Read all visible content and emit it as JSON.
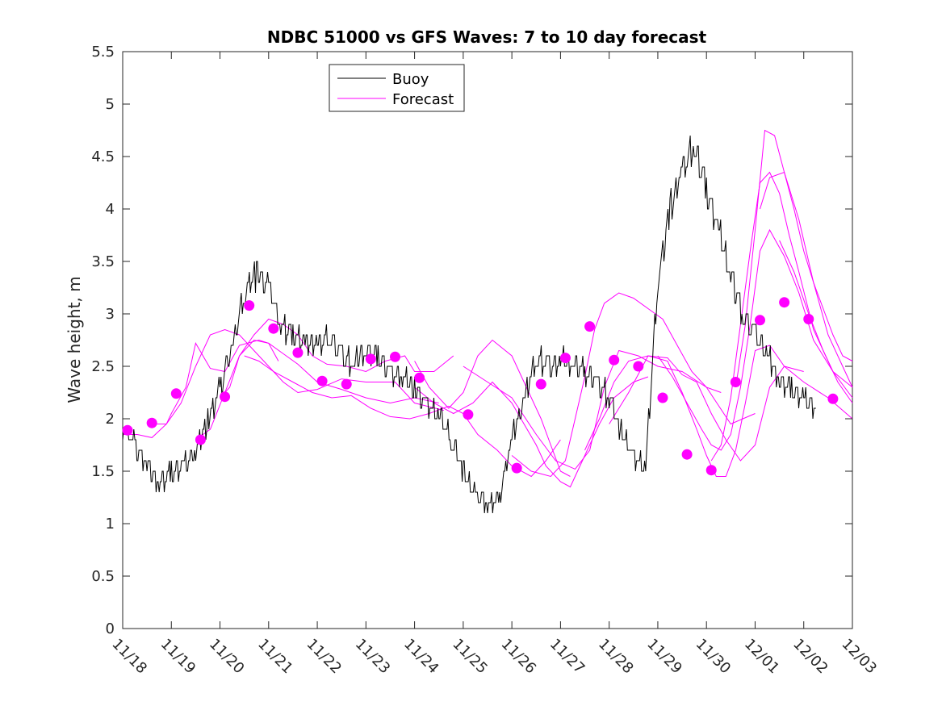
{
  "chart_data": {
    "type": "line",
    "title": "NDBC 51000 vs GFS Waves: 7 to 10 day forecast",
    "xlabel": "",
    "ylabel": "Wave height, m",
    "xlim": [
      0,
      15
    ],
    "ylim": [
      0,
      5.5
    ],
    "grid": false,
    "legend_position": "top-left",
    "x_tick_labels": [
      "11/18",
      "11/19",
      "11/20",
      "11/21",
      "11/22",
      "11/23",
      "11/24",
      "11/25",
      "11/26",
      "11/27",
      "11/28",
      "11/29",
      "11/30",
      "12/01",
      "12/02",
      "12/03"
    ],
    "y_ticks": [
      0,
      0.5,
      1,
      1.5,
      2,
      2.5,
      3,
      3.5,
      4,
      4.5,
      5,
      5.5
    ],
    "y_tick_labels": [
      "0",
      "0.5",
      "1",
      "1.5",
      "2",
      "2.5",
      "3",
      "3.5",
      "4",
      "4.5",
      "5",
      "5.5"
    ],
    "series": [
      {
        "name": "Buoy",
        "color": "#000000",
        "x": [
          0.0,
          0.25,
          0.5,
          0.75,
          1.0,
          1.25,
          1.5,
          1.75,
          2.0,
          2.25,
          2.5,
          2.75,
          3.0,
          3.25,
          3.5,
          3.75,
          4.0,
          4.25,
          4.5,
          4.75,
          5.0,
          5.25,
          5.5,
          5.75,
          6.0,
          6.25,
          6.5,
          6.75,
          7.0,
          7.25,
          7.5,
          7.75,
          8.0,
          8.25,
          8.5,
          8.75,
          9.0,
          9.25,
          9.5,
          9.75,
          10.0,
          10.25,
          10.5,
          10.75,
          11.0,
          11.25,
          11.5,
          11.75,
          12.0,
          12.25,
          12.5,
          12.75,
          13.0,
          13.25,
          13.5,
          13.75,
          14.0,
          14.25
        ],
        "values": [
          1.95,
          1.75,
          1.55,
          1.4,
          1.5,
          1.55,
          1.7,
          2.0,
          2.3,
          2.7,
          3.2,
          3.4,
          3.3,
          2.9,
          2.8,
          2.7,
          2.75,
          2.8,
          2.6,
          2.5,
          2.7,
          2.6,
          2.45,
          2.4,
          2.3,
          2.15,
          2.05,
          1.8,
          1.5,
          1.3,
          1.2,
          1.25,
          1.8,
          2.2,
          2.6,
          2.5,
          2.55,
          2.55,
          2.45,
          2.35,
          2.2,
          1.9,
          1.65,
          1.55,
          3.3,
          4.0,
          4.4,
          4.6,
          4.2,
          3.8,
          3.4,
          3.0,
          2.8,
          2.6,
          2.4,
          2.3,
          2.2,
          2.1
        ]
      }
    ],
    "forecast_series": [
      {
        "name": "Forecast",
        "color": "#ff00ff",
        "x": [
          0.0,
          0.3,
          0.6,
          0.9,
          1.0,
          1.3,
          1.5,
          1.8,
          2.1,
          2.4,
          2.8,
          3.0,
          3.2
        ],
        "values": [
          1.85,
          1.85,
          1.82,
          1.95,
          2.05,
          2.3,
          2.72,
          2.48,
          2.45,
          2.7,
          2.75,
          2.72,
          2.55
        ]
      },
      {
        "name": "Forecast",
        "color": "#ff00ff",
        "x": [
          0.6,
          0.9,
          1.2,
          1.5,
          1.8,
          2.1,
          2.4,
          2.7,
          3.0,
          3.3,
          3.6,
          4.0,
          4.5,
          5.0,
          5.6,
          6.0,
          6.6
        ],
        "values": [
          1.95,
          1.95,
          2.15,
          2.5,
          2.8,
          2.85,
          2.8,
          2.65,
          2.5,
          2.35,
          2.25,
          2.28,
          2.38,
          2.35,
          2.35,
          2.15,
          2.08
        ]
      },
      {
        "name": "Forecast",
        "color": "#ff00ff",
        "x": [
          1.5,
          1.8,
          2.1,
          2.4,
          2.7,
          3.0,
          3.3,
          3.6,
          4.0,
          4.5,
          5.0,
          5.5,
          6.0,
          6.5
        ],
        "values": [
          1.8,
          1.9,
          2.25,
          2.6,
          2.75,
          2.72,
          2.62,
          2.52,
          2.35,
          2.28,
          2.2,
          2.15,
          2.2,
          2.15
        ]
      },
      {
        "name": "Forecast",
        "color": "#ff00ff",
        "x": [
          2.0,
          2.2,
          2.4,
          2.7,
          3.0,
          3.3,
          3.6,
          3.9,
          4.2,
          4.6,
          5.0,
          5.4,
          5.8,
          6.0,
          6.4,
          6.8
        ],
        "values": [
          2.2,
          2.3,
          2.6,
          2.8,
          2.95,
          2.9,
          2.8,
          2.6,
          2.52,
          2.5,
          2.45,
          2.55,
          2.6,
          2.45,
          2.45,
          2.6
        ]
      },
      {
        "name": "Forecast",
        "color": "#ff00ff",
        "x": [
          2.5,
          2.8,
          3.1,
          3.5,
          3.9,
          4.3,
          4.7,
          5.1,
          5.5,
          5.9,
          6.3,
          6.7,
          7.0,
          7.3,
          7.7,
          8.0,
          8.4,
          8.7,
          9.0
        ],
        "values": [
          2.6,
          2.55,
          2.45,
          2.35,
          2.25,
          2.2,
          2.22,
          2.1,
          2.02,
          2.0,
          2.05,
          2.12,
          2.05,
          1.85,
          1.7,
          1.55,
          1.45,
          1.6,
          1.8
        ]
      },
      {
        "name": "Forecast",
        "color": "#ff00ff",
        "x": [
          6.0,
          6.3,
          6.7,
          7.0,
          7.3,
          7.6,
          8.0,
          8.3,
          8.6,
          8.8,
          9.0,
          9.2
        ],
        "values": [
          2.55,
          2.3,
          2.1,
          2.25,
          2.6,
          2.75,
          2.6,
          2.3,
          2.0,
          1.75,
          1.5,
          1.45
        ]
      },
      {
        "name": "Forecast",
        "color": "#ff00ff",
        "x": [
          6.0,
          6.4,
          6.8,
          7.2,
          7.6,
          8.0,
          8.5,
          8.7,
          9.0,
          9.2,
          9.5,
          9.8,
          10.1,
          10.5,
          10.8
        ],
        "values": [
          2.3,
          2.15,
          2.05,
          2.15,
          2.35,
          2.15,
          1.75,
          1.55,
          1.4,
          1.35,
          1.65,
          1.95,
          2.2,
          2.35,
          2.4
        ]
      },
      {
        "name": "Forecast",
        "color": "#ff00ff",
        "x": [
          7.0,
          7.5,
          8.0,
          8.5,
          8.9,
          9.3,
          9.6,
          9.9,
          10.2,
          10.6,
          11.0,
          11.5,
          12.0,
          12.5,
          13.0
        ],
        "values": [
          2.5,
          2.35,
          2.2,
          1.85,
          1.6,
          1.52,
          1.7,
          2.3,
          2.65,
          2.6,
          2.5,
          2.45,
          2.3,
          1.95,
          2.05
        ]
      },
      {
        "name": "Forecast",
        "color": "#ff00ff",
        "x": [
          8.0,
          8.4,
          8.8,
          9.1,
          9.3,
          9.5,
          9.7,
          9.9,
          10.2,
          10.5,
          10.8,
          11.1,
          11.4,
          11.7,
          12.0,
          12.3
        ],
        "values": [
          1.65,
          1.5,
          1.45,
          1.6,
          2.0,
          2.4,
          2.85,
          3.1,
          3.2,
          3.15,
          3.05,
          2.95,
          2.7,
          2.45,
          2.3,
          2.25
        ]
      },
      {
        "name": "Forecast",
        "color": "#ff00ff",
        "x": [
          9.5,
          9.8,
          10.1,
          10.4,
          10.8,
          11.2,
          11.5,
          11.8,
          12.1,
          12.4,
          12.7,
          13.0,
          13.3,
          13.6,
          14.0
        ],
        "values": [
          1.7,
          2.0,
          2.35,
          2.55,
          2.6,
          2.58,
          2.42,
          2.35,
          2.05,
          1.8,
          1.6,
          1.75,
          2.3,
          2.5,
          2.45
        ]
      },
      {
        "name": "Forecast",
        "color": "#ff00ff",
        "x": [
          10.0,
          10.4,
          10.8,
          11.2,
          11.5,
          11.8,
          12.0,
          12.2,
          12.4,
          12.6,
          12.8,
          13.0,
          13.3,
          13.6,
          14.0,
          14.5,
          15.0
        ],
        "values": [
          1.95,
          2.25,
          2.6,
          2.55,
          2.25,
          1.9,
          1.65,
          1.45,
          1.45,
          1.7,
          2.15,
          2.65,
          2.7,
          2.5,
          2.35,
          2.2,
          2.0
        ]
      },
      {
        "name": "Forecast",
        "color": "#ff00ff",
        "x": [
          11.0,
          11.3,
          11.6,
          11.9,
          12.1,
          12.3,
          12.5,
          12.7,
          12.9,
          13.1,
          13.3,
          13.6,
          13.9,
          14.2,
          14.6,
          15.0
        ],
        "values": [
          2.6,
          2.4,
          2.15,
          1.9,
          1.75,
          1.7,
          1.85,
          2.3,
          2.9,
          3.6,
          3.8,
          3.55,
          3.2,
          2.75,
          2.45,
          2.3
        ]
      },
      {
        "name": "Forecast",
        "color": "#ff00ff",
        "x": [
          12.1,
          12.3,
          12.5,
          12.7,
          12.9,
          13.1,
          13.3,
          13.5,
          13.7,
          13.9,
          14.2,
          14.6,
          15.0
        ],
        "values": [
          1.6,
          1.75,
          2.2,
          2.9,
          3.6,
          4.25,
          4.35,
          4.15,
          3.75,
          3.4,
          2.85,
          2.45,
          2.2
        ]
      },
      {
        "name": "Forecast",
        "color": "#ff00ff",
        "x": [
          12.6,
          12.8,
          13.0,
          13.2,
          13.4,
          13.6,
          13.8,
          14.0,
          14.2,
          14.4,
          14.6,
          14.8,
          15.0
        ],
        "values": [
          2.3,
          2.9,
          3.8,
          4.75,
          4.7,
          4.35,
          4.0,
          3.6,
          3.3,
          3.05,
          2.8,
          2.6,
          2.55
        ]
      },
      {
        "name": "Forecast",
        "color": "#ff00ff",
        "x": [
          13.1,
          13.3,
          13.6,
          13.9,
          14.2,
          14.5,
          14.8,
          15.0
        ],
        "values": [
          4.0,
          4.3,
          4.35,
          3.9,
          3.3,
          2.8,
          2.5,
          2.3
        ]
      },
      {
        "name": "Forecast",
        "color": "#ff00ff",
        "x": [
          13.5,
          13.8,
          14.1,
          14.4,
          14.7,
          15.0
        ],
        "values": [
          3.7,
          3.4,
          3.0,
          2.65,
          2.35,
          2.15
        ]
      }
    ],
    "forecast_points": {
      "name": "Forecast",
      "color": "#ff00ff",
      "x": [
        0.1,
        0.6,
        1.1,
        1.6,
        2.1,
        2.6,
        3.1,
        3.6,
        4.1,
        4.6,
        5.1,
        5.6,
        6.1,
        7.1,
        8.1,
        8.6,
        9.1,
        9.6,
        10.1,
        10.6,
        11.1,
        11.6,
        12.1,
        12.6,
        13.1,
        13.6,
        14.1,
        14.6
      ],
      "values": [
        1.89,
        1.96,
        2.24,
        1.8,
        2.21,
        3.08,
        2.86,
        2.63,
        2.36,
        2.33,
        2.57,
        2.59,
        2.39,
        2.04,
        1.53,
        2.33,
        2.58,
        2.88,
        2.56,
        2.5,
        2.2,
        1.66,
        1.51,
        2.35,
        2.94,
        3.11,
        2.95,
        2.19
      ]
    },
    "legend": [
      "Buoy",
      "Forecast"
    ]
  }
}
